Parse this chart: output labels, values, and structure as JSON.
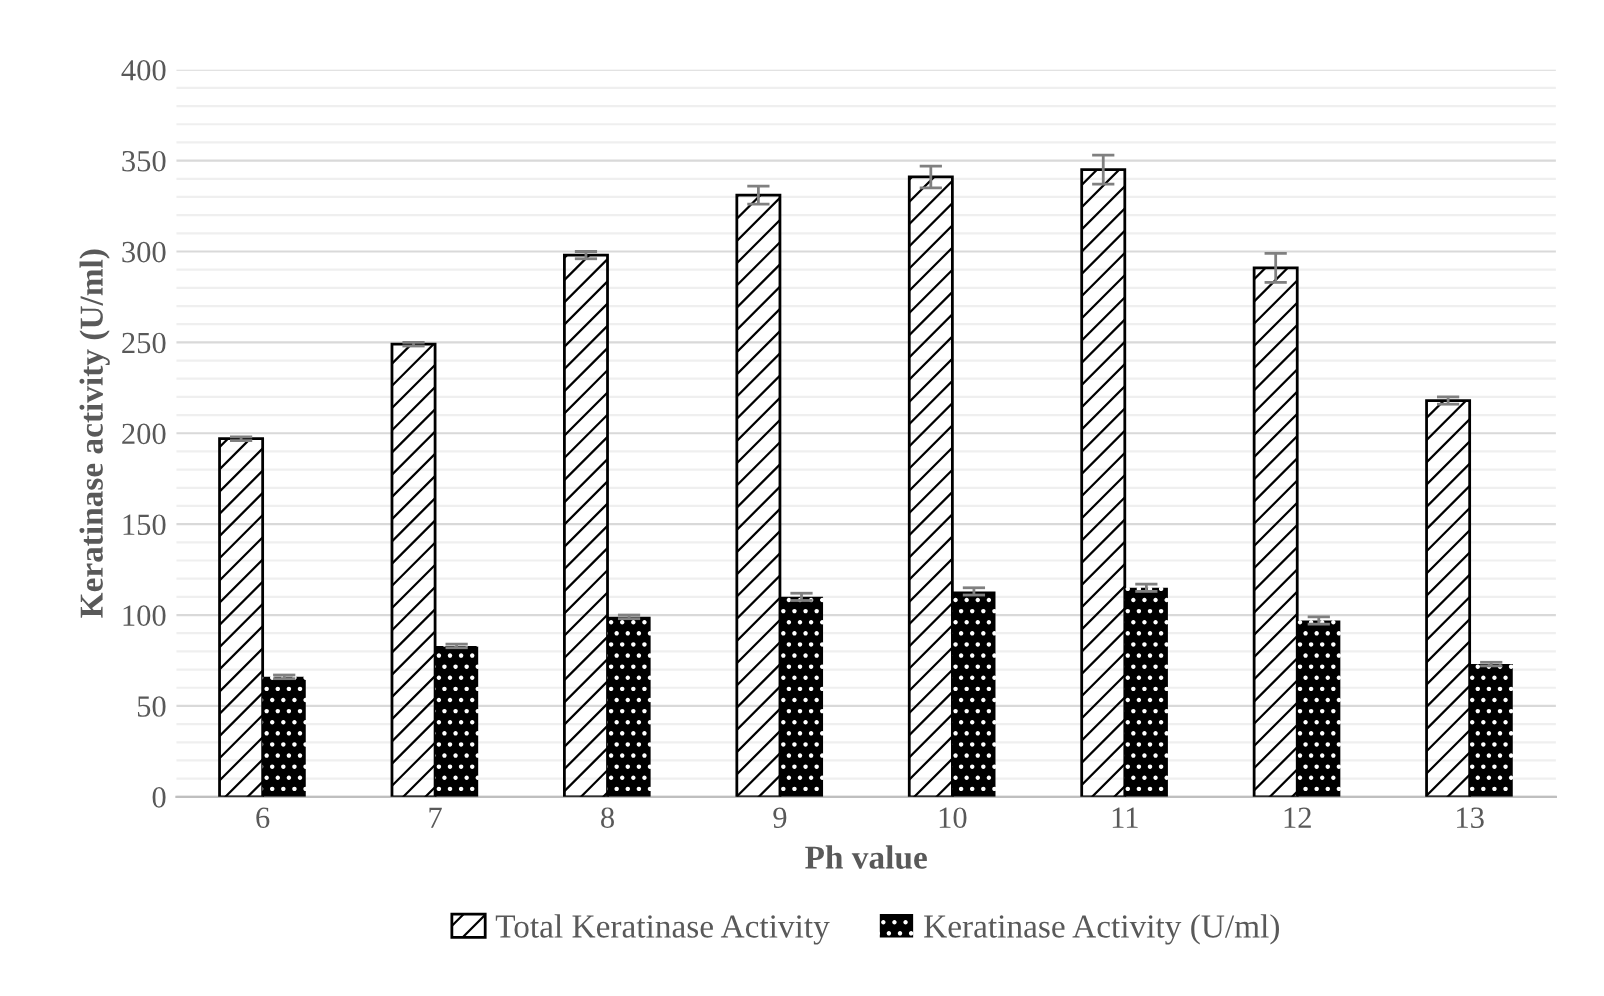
{
  "chart_data": {
    "type": "bar",
    "xlabel": "Ph value",
    "ylabel": "Keratinase activity (U/ml)",
    "categories": [
      "6",
      "7",
      "8",
      "9",
      "10",
      "11",
      "12",
      "13"
    ],
    "series": [
      {
        "name": "Total Keratinase Activity",
        "color": "#000000",
        "values": [
          197,
          249,
          298,
          331,
          341,
          345,
          291,
          218
        ],
        "errors": [
          1,
          1,
          2,
          5,
          6,
          8,
          8,
          2
        ]
      },
      {
        "name": "Keratinase Activity (U/ml)",
        "color": "#000000",
        "values": [
          66,
          83,
          99,
          110,
          113,
          115,
          97,
          73
        ],
        "errors": [
          1,
          1,
          1,
          2,
          2,
          2,
          2,
          1
        ]
      }
    ],
    "ylim": [
      0,
      400
    ],
    "yticks": [
      0,
      {
        "value": 10,
        "label": null
      },
      {
        "value": 20,
        "label": null
      },
      {
        "value": 30,
        "label": null
      },
      {
        "value": 40,
        "label": null
      },
      50,
      {
        "value": 60,
        "label": null
      },
      {
        "value": 70,
        "label": null
      },
      {
        "value": 80,
        "label": null
      },
      {
        "value": 90,
        "label": null
      },
      100,
      {
        "value": 110,
        "label": null
      },
      {
        "value": 120,
        "label": null
      },
      {
        "value": 130,
        "label": null
      },
      {
        "value": 140,
        "label": null
      },
      150,
      {
        "value": 160,
        "label": null
      },
      {
        "value": 170,
        "label": null
      },
      {
        "value": 180,
        "label": null
      },
      {
        "value": 190,
        "label": null
      },
      200,
      {
        "value": 210,
        "label": null
      },
      {
        "value": 220,
        "label": null
      },
      {
        "value": 230,
        "label": null
      },
      {
        "value": 240,
        "label": null
      },
      250,
      {
        "value": 260,
        "label": null
      },
      {
        "value": 270,
        "label": null
      },
      {
        "value": 280,
        "label": null
      },
      {
        "value": 290,
        "label": null
      },
      300,
      {
        "value": 310,
        "label": null
      },
      {
        "value": 320,
        "label": null
      },
      {
        "value": 330,
        "label": null
      },
      {
        "value": 340,
        "label": null
      },
      350,
      {
        "value": 360,
        "label": null
      },
      {
        "value": 370,
        "label": null
      },
      {
        "value": 380,
        "label": null
      },
      {
        "value": 390,
        "label": null
      },
      400
    ],
    "grid": "y",
    "legend": "bottom"
  }
}
